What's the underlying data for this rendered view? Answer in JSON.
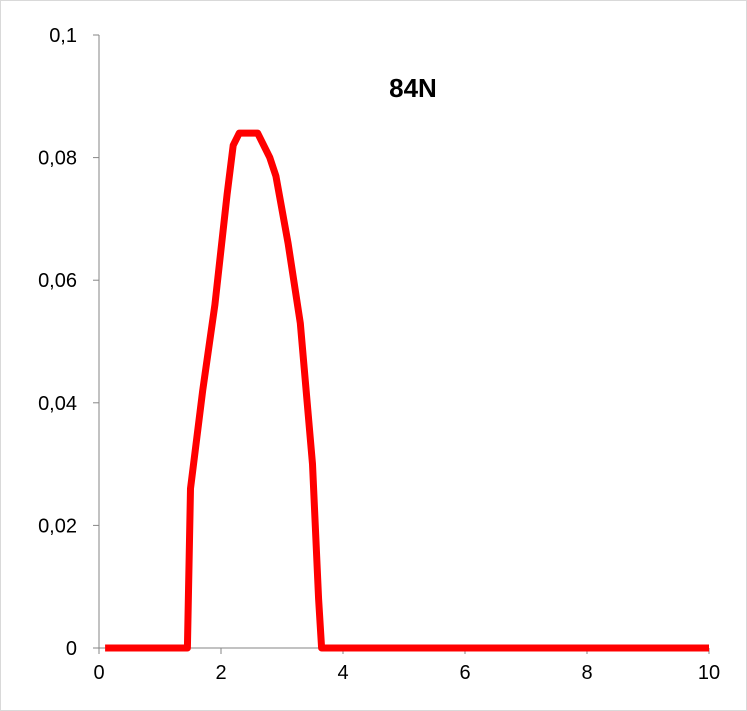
{
  "chart_data": {
    "type": "line",
    "title": "84N",
    "xlabel": "",
    "ylabel": "",
    "xlim": [
      0,
      10
    ],
    "ylim": [
      0,
      0.1
    ],
    "x_ticks": [
      0,
      2,
      4,
      6,
      8,
      10
    ],
    "x_tick_labels": [
      "0",
      "2",
      "4",
      "6",
      "8",
      "10"
    ],
    "y_ticks": [
      0,
      0.02,
      0.04,
      0.06,
      0.08,
      0.1
    ],
    "y_tick_labels": [
      "0",
      "0,02",
      "0,04",
      "0,06",
      "0,08",
      "0,1"
    ],
    "grid": false,
    "legend": "none",
    "series": [
      {
        "color": "#ff0000",
        "x": [
          0.1,
          1.0,
          1.45,
          1.5,
          1.7,
          1.9,
          2.1,
          2.2,
          2.3,
          2.6,
          2.8,
          2.9,
          3.1,
          3.3,
          3.5,
          3.6,
          3.65,
          4.0,
          6.0,
          8.0,
          10.0
        ],
        "y": [
          0,
          0,
          0,
          0.026,
          0.042,
          0.056,
          0.074,
          0.082,
          0.084,
          0.084,
          0.08,
          0.077,
          0.066,
          0.053,
          0.03,
          0.008,
          0,
          0,
          0,
          0,
          0
        ]
      }
    ]
  }
}
